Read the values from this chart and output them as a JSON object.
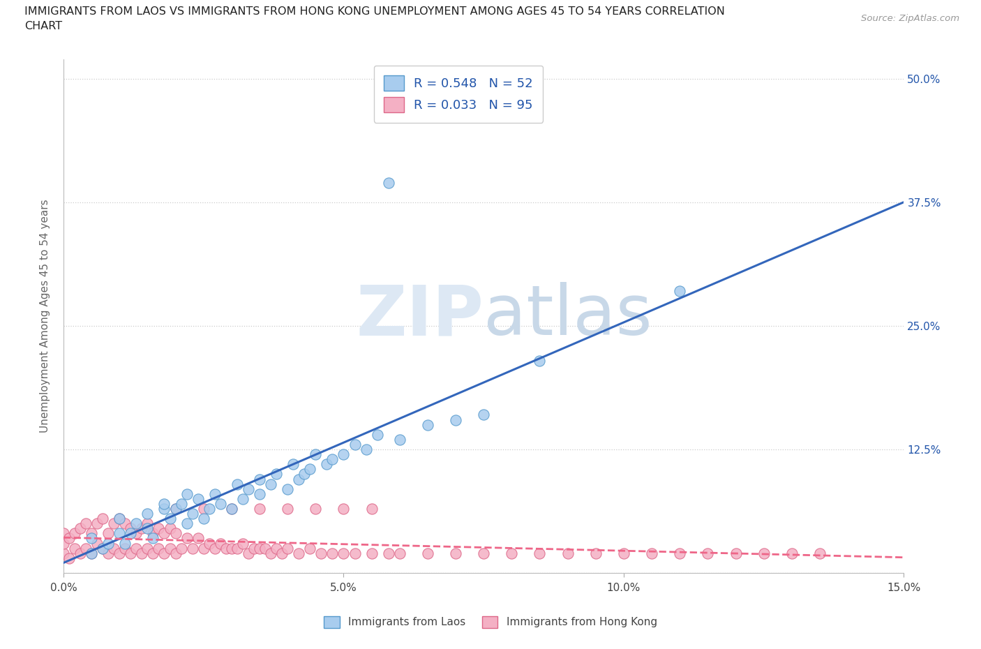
{
  "title_line1": "IMMIGRANTS FROM LAOS VS IMMIGRANTS FROM HONG KONG UNEMPLOYMENT AMONG AGES 45 TO 54 YEARS CORRELATION",
  "title_line2": "CHART",
  "source": "Source: ZipAtlas.com",
  "ylabel": "Unemployment Among Ages 45 to 54 years",
  "xlim": [
    0.0,
    0.15
  ],
  "ylim": [
    0.0,
    0.52
  ],
  "laos_color": "#a8ccee",
  "laos_edge_color": "#5599cc",
  "hk_color": "#f4b0c4",
  "hk_edge_color": "#dd6688",
  "laos_R": 0.548,
  "laos_N": 52,
  "hk_R": 0.033,
  "hk_N": 95,
  "laos_trend_color": "#3366bb",
  "hk_trend_color": "#ee6688",
  "watermark_color": "#dde8f4",
  "grid_color": "#cccccc",
  "right_tick_color": "#2255aa",
  "title_color": "#222222",
  "label_color": "#666666",
  "laos_x": [
    0.005,
    0.005,
    0.007,
    0.008,
    0.01,
    0.01,
    0.011,
    0.012,
    0.013,
    0.015,
    0.015,
    0.016,
    0.018,
    0.018,
    0.019,
    0.02,
    0.021,
    0.022,
    0.022,
    0.023,
    0.024,
    0.025,
    0.026,
    0.027,
    0.028,
    0.03,
    0.031,
    0.032,
    0.033,
    0.035,
    0.035,
    0.037,
    0.038,
    0.04,
    0.041,
    0.042,
    0.043,
    0.044,
    0.045,
    0.047,
    0.048,
    0.05,
    0.052,
    0.054,
    0.056,
    0.06,
    0.065,
    0.07,
    0.075,
    0.058,
    0.11,
    0.085
  ],
  "laos_y": [
    0.02,
    0.035,
    0.025,
    0.03,
    0.04,
    0.055,
    0.03,
    0.04,
    0.05,
    0.045,
    0.06,
    0.035,
    0.065,
    0.07,
    0.055,
    0.065,
    0.07,
    0.05,
    0.08,
    0.06,
    0.075,
    0.055,
    0.065,
    0.08,
    0.07,
    0.065,
    0.09,
    0.075,
    0.085,
    0.08,
    0.095,
    0.09,
    0.1,
    0.085,
    0.11,
    0.095,
    0.1,
    0.105,
    0.12,
    0.11,
    0.115,
    0.12,
    0.13,
    0.125,
    0.14,
    0.135,
    0.15,
    0.155,
    0.16,
    0.395,
    0.285,
    0.215
  ],
  "hk_x": [
    0.0,
    0.0,
    0.0,
    0.001,
    0.001,
    0.002,
    0.002,
    0.003,
    0.003,
    0.004,
    0.004,
    0.005,
    0.005,
    0.006,
    0.006,
    0.007,
    0.007,
    0.008,
    0.008,
    0.009,
    0.009,
    0.01,
    0.01,
    0.011,
    0.011,
    0.012,
    0.012,
    0.013,
    0.013,
    0.014,
    0.014,
    0.015,
    0.015,
    0.016,
    0.016,
    0.017,
    0.017,
    0.018,
    0.018,
    0.019,
    0.019,
    0.02,
    0.02,
    0.021,
    0.022,
    0.023,
    0.024,
    0.025,
    0.026,
    0.027,
    0.028,
    0.029,
    0.03,
    0.031,
    0.032,
    0.033,
    0.034,
    0.035,
    0.036,
    0.037,
    0.038,
    0.039,
    0.04,
    0.042,
    0.044,
    0.046,
    0.048,
    0.05,
    0.052,
    0.055,
    0.058,
    0.06,
    0.065,
    0.07,
    0.075,
    0.08,
    0.085,
    0.09,
    0.095,
    0.1,
    0.105,
    0.11,
    0.115,
    0.12,
    0.125,
    0.13,
    0.135,
    0.02,
    0.025,
    0.03,
    0.035,
    0.04,
    0.045,
    0.05,
    0.055
  ],
  "hk_y": [
    0.02,
    0.03,
    0.04,
    0.015,
    0.035,
    0.025,
    0.04,
    0.02,
    0.045,
    0.025,
    0.05,
    0.02,
    0.04,
    0.03,
    0.05,
    0.025,
    0.055,
    0.02,
    0.04,
    0.025,
    0.05,
    0.02,
    0.055,
    0.025,
    0.05,
    0.02,
    0.045,
    0.025,
    0.04,
    0.02,
    0.045,
    0.025,
    0.05,
    0.02,
    0.04,
    0.025,
    0.045,
    0.02,
    0.04,
    0.025,
    0.045,
    0.02,
    0.04,
    0.025,
    0.035,
    0.025,
    0.035,
    0.025,
    0.03,
    0.025,
    0.03,
    0.025,
    0.025,
    0.025,
    0.03,
    0.02,
    0.025,
    0.025,
    0.025,
    0.02,
    0.025,
    0.02,
    0.025,
    0.02,
    0.025,
    0.02,
    0.02,
    0.02,
    0.02,
    0.02,
    0.02,
    0.02,
    0.02,
    0.02,
    0.02,
    0.02,
    0.02,
    0.02,
    0.02,
    0.02,
    0.02,
    0.02,
    0.02,
    0.02,
    0.02,
    0.02,
    0.02,
    0.065,
    0.065,
    0.065,
    0.065,
    0.065,
    0.065,
    0.065,
    0.065
  ]
}
